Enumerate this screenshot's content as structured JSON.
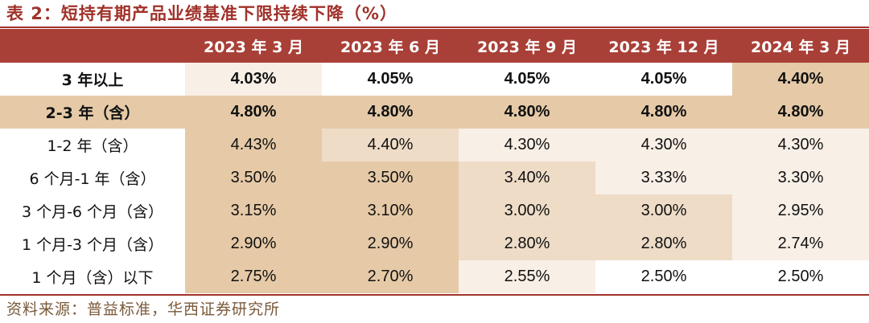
{
  "title": "表 2：短持有期产品业绩基准下限持续下降（%）",
  "header": {
    "corner": "",
    "columns": [
      "2023 年 3 月",
      "2023 年 6 月",
      "2023 年 9 月",
      "2023 年 12 月",
      "2024 年 3 月"
    ]
  },
  "rows": [
    {
      "label": "3 年以上",
      "values": [
        "4.03%",
        "4.05%",
        "4.05%",
        "4.05%",
        "4.40%"
      ],
      "bold": true
    },
    {
      "label": "2-3 年（含）",
      "values": [
        "4.80%",
        "4.80%",
        "4.80%",
        "4.80%",
        "4.80%"
      ],
      "bold": true
    },
    {
      "label": "1-2 年（含）",
      "values": [
        "4.43%",
        "4.40%",
        "4.30%",
        "4.30%",
        "4.30%"
      ],
      "bold": false
    },
    {
      "label": "6 个月-1 年（含）",
      "values": [
        "3.50%",
        "3.50%",
        "3.40%",
        "3.33%",
        "3.30%"
      ],
      "bold": false
    },
    {
      "label": "3 个月-6 个月（含）",
      "values": [
        "3.15%",
        "3.10%",
        "3.00%",
        "3.00%",
        "2.95%"
      ],
      "bold": false
    },
    {
      "label": "1 个月-3 个月（含）",
      "values": [
        "2.90%",
        "2.90%",
        "2.80%",
        "2.80%",
        "2.74%"
      ],
      "bold": false
    },
    {
      "label": "1 个月（含）以下",
      "values": [
        "2.75%",
        "2.70%",
        "2.55%",
        "2.50%",
        "2.50%"
      ],
      "bold": false
    }
  ],
  "colors": {
    "title": "#a0322a",
    "header_bg": "#a94038",
    "shade_light": "#f8efe6",
    "shade_mid": "#eedcc7",
    "shade_dark": "#e6caa7"
  },
  "source": "资料来源：普益标准，华西证券研究所"
}
